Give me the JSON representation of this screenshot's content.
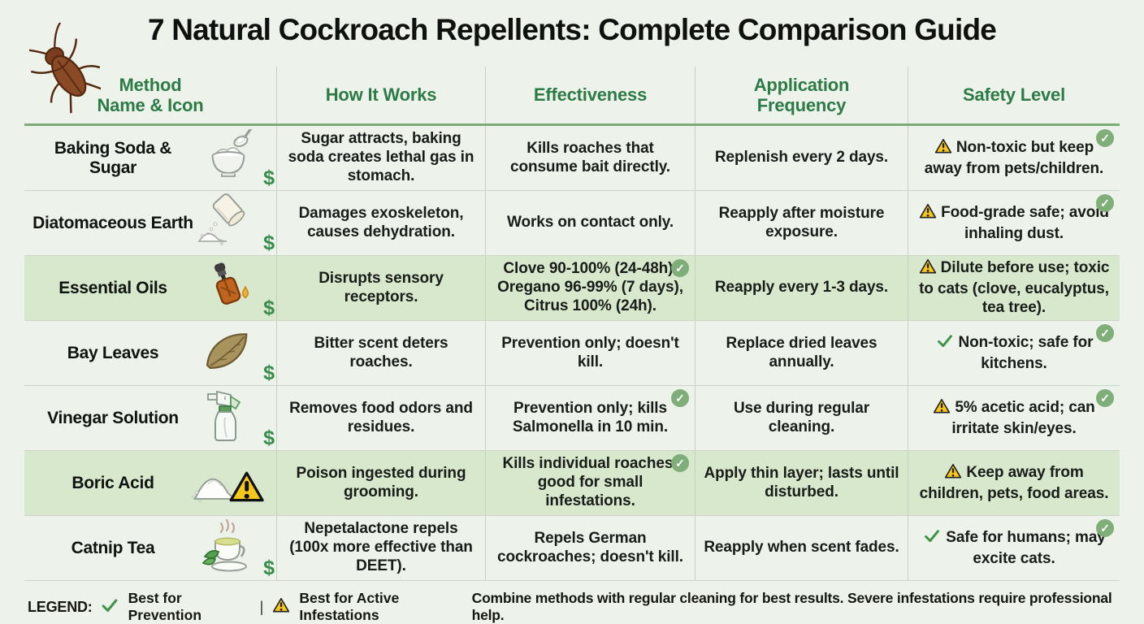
{
  "title": "7 Natural Cockroach Repellents: Complete Comparison Guide",
  "header_icon": "cockroach-icon",
  "colors": {
    "background": "#edf2eb",
    "row_highlight": "#d8e8cd",
    "header_green": "#2c7a45",
    "accent_line_green": "#7cab74",
    "badge_green": "#7fae79",
    "check_green": "#3f9448",
    "warning_yellow": "#f8c71c",
    "dollar_green": "#3a8c4d"
  },
  "columns": [
    {
      "label": "Method\nName & Icon"
    },
    {
      "label": "How It Works"
    },
    {
      "label": "Effectiveness"
    },
    {
      "label": "Application\nFrequency"
    },
    {
      "label": "Safety Level"
    }
  ],
  "badge_glyph": "✓",
  "rows": [
    {
      "name": "Baking Soda & Sugar",
      "icon": "sugar-bowl-icon",
      "cost": "$",
      "how_it_works": "Sugar attracts, baking soda creates lethal gas in stomach.",
      "effectiveness": "Kills roaches that consume bait directly.",
      "effectiveness_badge": false,
      "frequency": "Replenish every 2 days.",
      "safety_icon": "warning-icon",
      "safety": "Non-toxic but keep away from pets/children.",
      "safety_badge": true,
      "highlighted": false
    },
    {
      "name": "Diatomaceous Earth",
      "icon": "powder-jar-icon",
      "cost": "$",
      "how_it_works": "Damages exoskeleton, causes dehydration.",
      "effectiveness": "Works on contact only.",
      "effectiveness_badge": false,
      "frequency": "Reapply after moisture exposure.",
      "safety_icon": "warning-icon",
      "safety": "Food-grade safe; avoid inhaling dust.",
      "safety_badge": true,
      "highlighted": false
    },
    {
      "name": "Essential Oils",
      "icon": "oil-dropper-icon",
      "cost": "$",
      "how_it_works": "Disrupts sensory receptors.",
      "effectiveness": "Clove 90-100% (24-48h), Oregano 96-99% (7 days), Citrus 100% (24h).",
      "effectiveness_badge": true,
      "frequency": "Reapply every 1-3 days.",
      "safety_icon": "warning-icon",
      "safety": "Dilute before use; toxic to cats (clove, eucalyptus, tea tree).",
      "safety_badge": false,
      "highlighted": true
    },
    {
      "name": "Bay Leaves",
      "icon": "bay-leaf-icon",
      "cost": "$",
      "how_it_works": "Bitter scent deters roaches.",
      "effectiveness": "Prevention only; doesn't kill.",
      "effectiveness_badge": false,
      "frequency": "Replace dried leaves annually.",
      "safety_icon": "check-icon",
      "safety": "Non-toxic; safe for kitchens.",
      "safety_badge": true,
      "highlighted": false
    },
    {
      "name": "Vinegar Solution",
      "icon": "spray-bottle-icon",
      "cost": "$",
      "how_it_works": "Removes food odors and residues.",
      "effectiveness": "Prevention only; kills Salmonella in 10 min.",
      "effectiveness_badge": true,
      "frequency": "Use during regular cleaning.",
      "safety_icon": "warning-icon",
      "safety": "5% acetic acid; can irritate skin/eyes.",
      "safety_badge": true,
      "highlighted": false
    },
    {
      "name": "Boric Acid",
      "icon": "powder-pile-warning-icon",
      "cost": "",
      "how_it_works": "Poison ingested during grooming.",
      "effectiveness": "Kills individual roaches; good for small infestations.",
      "effectiveness_badge": true,
      "frequency": "Apply thin layer; lasts until disturbed.",
      "safety_icon": "warning-icon",
      "safety": "Keep away from children, pets, food areas.",
      "safety_badge": false,
      "highlighted": true
    },
    {
      "name": "Catnip Tea",
      "icon": "teacup-icon",
      "cost": "$",
      "how_it_works": "Nepetalactone repels (100x more effective than DEET).",
      "effectiveness": "Repels German cockroaches; doesn't kill.",
      "effectiveness_badge": false,
      "frequency": "Reapply when scent fades.",
      "safety_icon": "check-icon",
      "safety": "Safe for humans; may excite cats.",
      "safety_badge": true,
      "highlighted": false
    }
  ],
  "legend": {
    "label": "LEGEND:",
    "separator": "|",
    "items": [
      {
        "icon": "check-icon",
        "label": "Best for Prevention"
      },
      {
        "icon": "warning-icon",
        "label": "Best for Active Infestations"
      }
    ]
  },
  "footer": "Combine methods with regular cleaning for best results. Severe infestations require professional help."
}
